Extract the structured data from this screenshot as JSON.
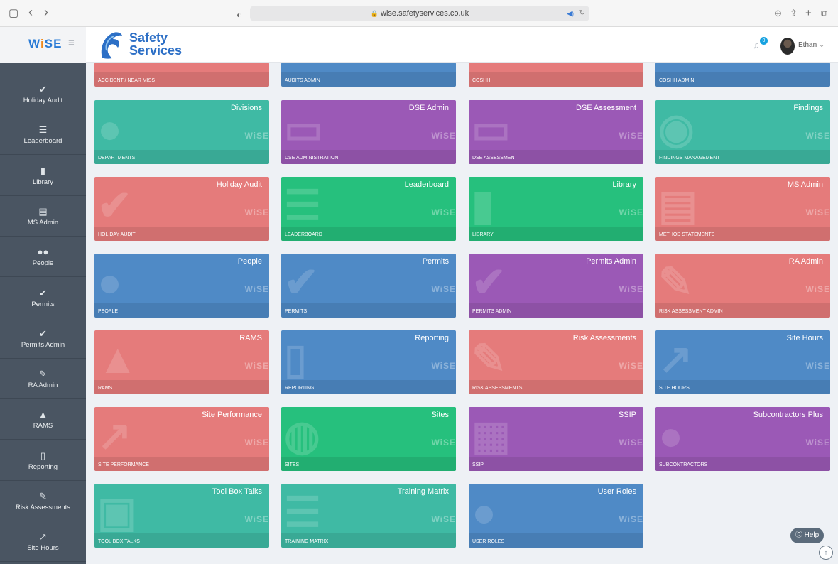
{
  "browser": {
    "url": "wise.safetyservices.co.uk",
    "lock_icon": "lock-icon",
    "sidebar_toggle_glyph": "▢",
    "back_glyph": "‹",
    "forward_glyph": "›",
    "shield_glyph": "◐",
    "audio_glyph": "◀)",
    "reload_glyph": "↻",
    "download_glyph": "⊕",
    "share_glyph": "⇪",
    "newtab_glyph": "+",
    "tabs_glyph": "⧉"
  },
  "header": {
    "brand_part1": "W",
    "brand_part2": "i",
    "brand_part3": "SE",
    "hamburger_glyph": "≡",
    "logo_line1": "Safety",
    "logo_line2": "Services",
    "notification_count": "0",
    "bell_glyph": "🔔",
    "user_name": "Ethan",
    "user_caret": "⌄"
  },
  "sidebar": {
    "items": [
      {
        "icon": "✔",
        "label": "Holiday Audit"
      },
      {
        "icon": "☰",
        "label": "Leaderboard"
      },
      {
        "icon": "▮",
        "label": "Library"
      },
      {
        "icon": "▤",
        "label": "MS Admin"
      },
      {
        "icon": "●●",
        "label": "People"
      },
      {
        "icon": "✔",
        "label": "Permits"
      },
      {
        "icon": "✔",
        "label": "Permits Admin"
      },
      {
        "icon": "✎",
        "label": "RA Admin"
      },
      {
        "icon": "▲",
        "label": "RAMS"
      },
      {
        "icon": "▯",
        "label": "Reporting"
      },
      {
        "icon": "✎",
        "label": "Risk Assessments"
      },
      {
        "icon": "↗",
        "label": "Site Hours"
      }
    ]
  },
  "tiles": {
    "wise_mark": "WiSE",
    "top_row": [
      {
        "subtitle": "ACCIDENT / NEAR MISS"
      },
      {
        "subtitle": "AUDITS ADMIN"
      },
      {
        "subtitle": "COSHH"
      },
      {
        "subtitle": "COSHH ADMIN"
      }
    ],
    "items": [
      {
        "title": "Divisions",
        "subtitle": "DEPARTMENTS",
        "bg": "●"
      },
      {
        "title": "DSE Admin",
        "subtitle": "DSE ADMINISTRATION",
        "bg": "▭"
      },
      {
        "title": "DSE Assessment",
        "subtitle": "DSE ASSESSMENT",
        "bg": "▭"
      },
      {
        "title": "Findings",
        "subtitle": "FINDINGS MANAGEMENT",
        "bg": "◉"
      },
      {
        "title": "Holiday Audit",
        "subtitle": "HOLIDAY AUDIT",
        "bg": "✔"
      },
      {
        "title": "Leaderboard",
        "subtitle": "LEADERBOARD",
        "bg": "☰"
      },
      {
        "title": "Library",
        "subtitle": "LIBRARY",
        "bg": "▮"
      },
      {
        "title": "MS Admin",
        "subtitle": "METHOD STATEMENTS",
        "bg": "▤"
      },
      {
        "title": "People",
        "subtitle": "PEOPLE",
        "bg": "●"
      },
      {
        "title": "Permits",
        "subtitle": "PERMITS",
        "bg": "✔"
      },
      {
        "title": "Permits Admin",
        "subtitle": "PERMITS ADMIN",
        "bg": "✔"
      },
      {
        "title": "RA Admin",
        "subtitle": "RISK ASSESSMENT ADMIN",
        "bg": "✎"
      },
      {
        "title": "RAMS",
        "subtitle": "RAMS",
        "bg": "▲"
      },
      {
        "title": "Reporting",
        "subtitle": "REPORTING",
        "bg": "▯"
      },
      {
        "title": "Risk Assessments",
        "subtitle": "RISK ASSESSMENTS",
        "bg": "✎"
      },
      {
        "title": "Site Hours",
        "subtitle": "SITE HOURS",
        "bg": "↗"
      },
      {
        "title": "Site Performance",
        "subtitle": "SITE PERFORMANCE",
        "bg": "↗"
      },
      {
        "title": "Sites",
        "subtitle": "SITES",
        "bg": "◍"
      },
      {
        "title": "SSIP",
        "subtitle": "SSIP",
        "bg": "▦"
      },
      {
        "title": "Subcontractors Plus",
        "subtitle": "SUBCONTRACTORS",
        "bg": "●"
      },
      {
        "title": "Tool Box Talks",
        "subtitle": "TOOL BOX TALKS",
        "bg": "▣"
      },
      {
        "title": "Training Matrix",
        "subtitle": "TRAINING MATRIX",
        "bg": "☰"
      },
      {
        "title": "User Roles",
        "subtitle": "USER ROLES",
        "bg": "●"
      }
    ]
  },
  "help": {
    "label": "⓪ Help",
    "scroll_top_glyph": "↑"
  },
  "colors": {
    "red": "#e57b7b",
    "blue": "#4f8ac6",
    "teal": "#3fbaa4",
    "purple": "#9b59b6",
    "green": "#26c07d"
  }
}
